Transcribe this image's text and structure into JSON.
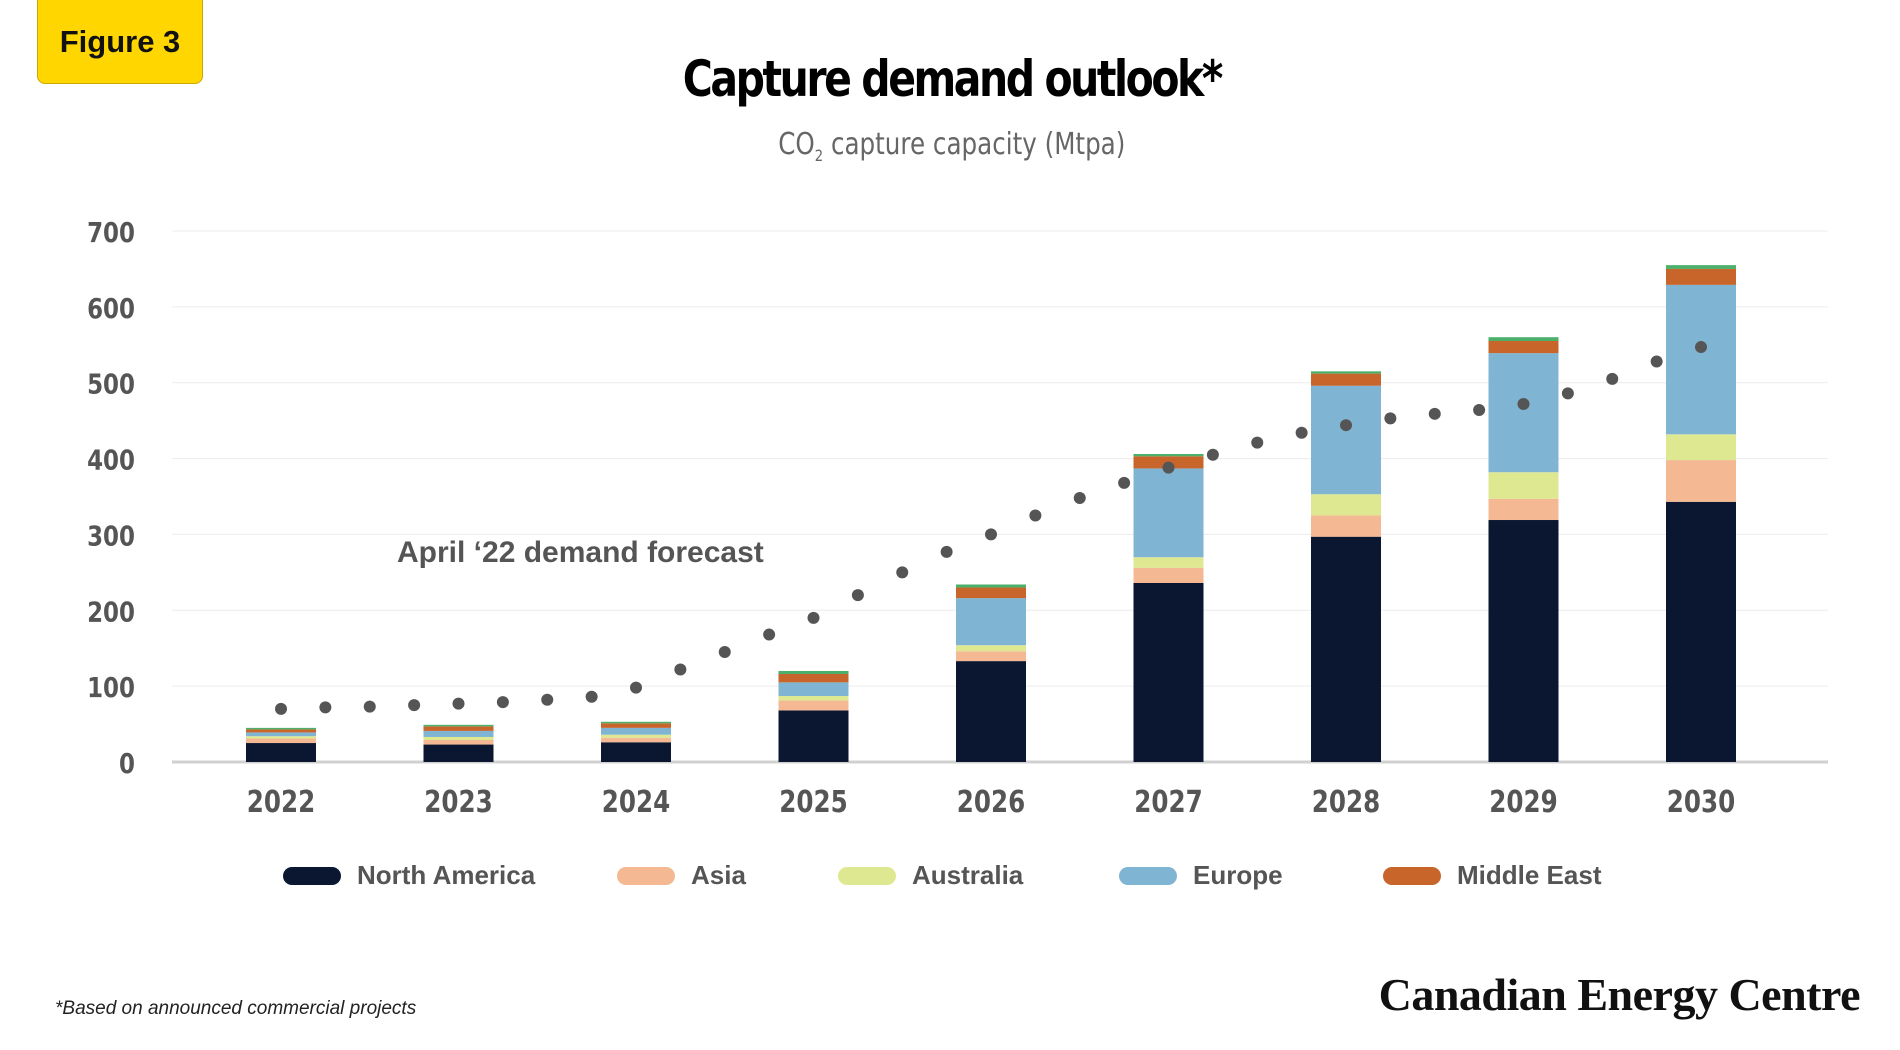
{
  "badge": "Figure 3",
  "chart_data": {
    "type": "bar",
    "stacked": true,
    "title": "Capture demand outlook*",
    "subtitle_prefix": "CO",
    "subtitle_sub": "2",
    "subtitle_suffix": " capture capacity (Mtpa)",
    "categories": [
      "2022",
      "2023",
      "2024",
      "2025",
      "2026",
      "2027",
      "2028",
      "2029",
      "2030"
    ],
    "ylim": [
      0,
      700
    ],
    "yticks": [
      "0",
      "100",
      "200",
      "300",
      "400",
      "500",
      "600",
      "700"
    ],
    "grid": true,
    "series": [
      {
        "name": "North America",
        "color": "#0b1631",
        "values": [
          25,
          23,
          26,
          68,
          133,
          236,
          297,
          319,
          343
        ]
      },
      {
        "name": "Asia",
        "color": "#f4b892",
        "values": [
          6,
          6,
          6,
          13,
          13,
          20,
          28,
          28,
          55
        ]
      },
      {
        "name": "Australia",
        "color": "#dde891",
        "values": [
          3,
          4,
          4,
          6,
          8,
          14,
          28,
          35,
          34
        ]
      },
      {
        "name": "Europe",
        "color": "#7fb5d2",
        "values": [
          5,
          8,
          9,
          18,
          62,
          117,
          143,
          157,
          197
        ]
      },
      {
        "name": "Middle East",
        "color": "#c7652b",
        "values": [
          4,
          6,
          6,
          11,
          14,
          16,
          16,
          16,
          21
        ]
      },
      {
        "name": "",
        "color": "#4caf6a",
        "values": [
          2,
          2,
          2,
          4,
          4,
          3,
          3,
          5,
          5
        ]
      }
    ],
    "forecast": {
      "label": "April ‘22 demand forecast",
      "color": "#555555",
      "points": [
        [
          2022.0,
          70
        ],
        [
          2022.25,
          72
        ],
        [
          2022.5,
          73
        ],
        [
          2022.75,
          75
        ],
        [
          2023.0,
          77
        ],
        [
          2023.25,
          79
        ],
        [
          2023.5,
          82
        ],
        [
          2023.75,
          86
        ],
        [
          2024.0,
          98
        ],
        [
          2024.25,
          122
        ],
        [
          2024.5,
          145
        ],
        [
          2024.75,
          168
        ],
        [
          2025.0,
          190
        ],
        [
          2025.25,
          220
        ],
        [
          2025.5,
          250
        ],
        [
          2025.75,
          277
        ],
        [
          2026.0,
          300
        ],
        [
          2026.25,
          325
        ],
        [
          2026.5,
          348
        ],
        [
          2026.75,
          368
        ],
        [
          2027.0,
          388
        ],
        [
          2027.25,
          405
        ],
        [
          2027.5,
          421
        ],
        [
          2027.75,
          434
        ],
        [
          2028.0,
          444
        ],
        [
          2028.25,
          453
        ],
        [
          2028.5,
          459
        ],
        [
          2028.75,
          464
        ],
        [
          2029.0,
          472
        ],
        [
          2029.25,
          486
        ],
        [
          2029.5,
          505
        ],
        [
          2029.75,
          528
        ],
        [
          2030.0,
          547
        ]
      ]
    }
  },
  "legend_items": [
    "North America",
    "Asia",
    "Australia",
    "Europe",
    "Middle East"
  ],
  "footnote": "*Based on announced commercial projects",
  "brand": "Canadian Energy Centre"
}
